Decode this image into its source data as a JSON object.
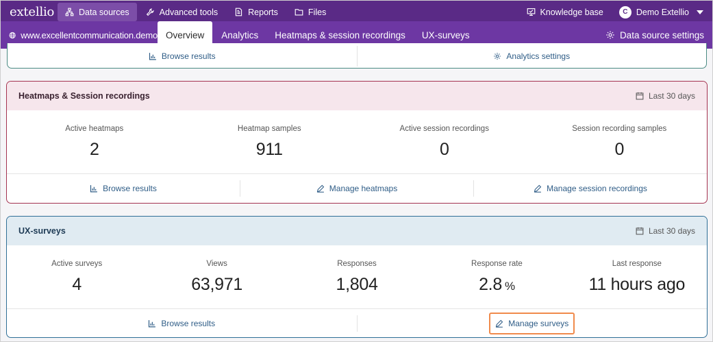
{
  "topbar": {
    "logo": "extellio",
    "nav": [
      {
        "label": "Data sources",
        "icon": "sitemap-icon"
      },
      {
        "label": "Advanced tools",
        "icon": "wrench-icon"
      },
      {
        "label": "Reports",
        "icon": "report-icon"
      },
      {
        "label": "Files",
        "icon": "folder-icon"
      }
    ],
    "knowledge_base": "Knowledge base",
    "user_initial": "C",
    "user_name": "Demo Extellio"
  },
  "subbar": {
    "site": "www.excellentcommunication.demo",
    "tabs": [
      "Overview",
      "Analytics",
      "Heatmaps & session recordings",
      "UX-surveys"
    ],
    "active_tab": "Overview",
    "settings_label": "Data source settings"
  },
  "analytics_card": {
    "browse_label": "Browse results",
    "settings_label": "Analytics settings"
  },
  "heatmaps_card": {
    "title": "Heatmaps & Session recordings",
    "period": "Last 30 days",
    "stats": [
      {
        "label": "Active heatmaps",
        "value": "2"
      },
      {
        "label": "Heatmap samples",
        "value": "911"
      },
      {
        "label": "Active session recordings",
        "value": "0"
      },
      {
        "label": "Session recording samples",
        "value": "0"
      }
    ],
    "links": [
      "Browse results",
      "Manage heatmaps",
      "Manage session recordings"
    ]
  },
  "surveys_card": {
    "title": "UX-surveys",
    "period": "Last 30 days",
    "stats": [
      {
        "label": "Active surveys",
        "value": "4"
      },
      {
        "label": "Views",
        "value": "63,971"
      },
      {
        "label": "Responses",
        "value": "1,804"
      },
      {
        "label": "Response rate",
        "value": "2.8",
        "unit": "%"
      },
      {
        "label": "Last response",
        "value": "11 hours ago"
      }
    ],
    "links": [
      "Browse results",
      "Manage surveys"
    ]
  },
  "colors": {
    "topbar": "#5a2a86",
    "subbar": "#6d37a3",
    "heatmaps_border": "#a4324f",
    "surveys_border": "#2e6e96",
    "highlight": "#f08a4b"
  }
}
